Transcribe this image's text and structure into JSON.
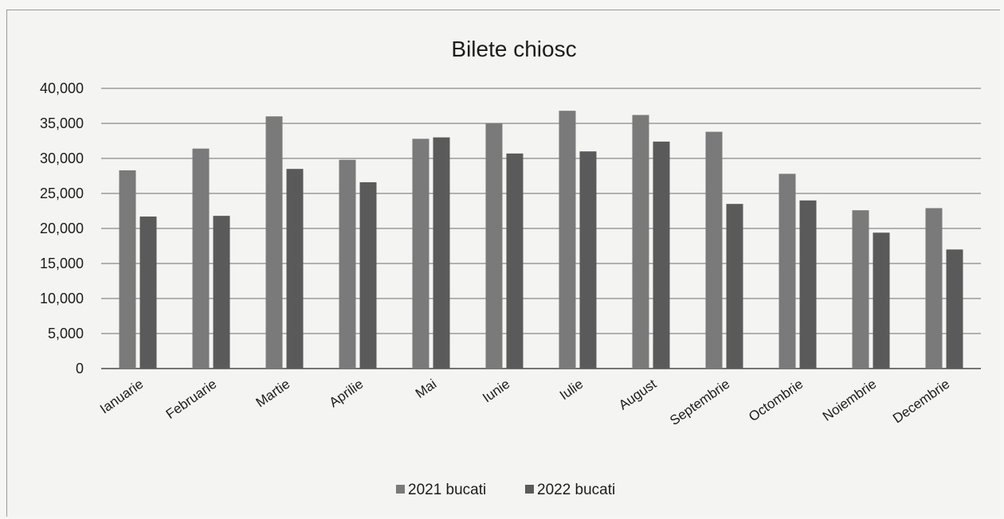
{
  "chart_data": {
    "type": "bar",
    "title": "Bilete chiosc",
    "categories": [
      "Ianuarie",
      "Februarie",
      "Martie",
      "Aprilie",
      "Mai",
      "Iunie",
      "Iulie",
      "August",
      "Septembrie",
      "Octombrie",
      "Noiembrie",
      "Decembrie"
    ],
    "series": [
      {
        "name": "2021 bucati",
        "color": "#7a7a7a",
        "values": [
          28300,
          31400,
          36000,
          29800,
          32800,
          35000,
          36800,
          36200,
          33800,
          27800,
          22600,
          22900
        ]
      },
      {
        "name": "2022 bucati",
        "color": "#5a5a5a",
        "values": [
          21700,
          21800,
          28500,
          26600,
          33000,
          30700,
          31000,
          32400,
          23500,
          24000,
          19400,
          17000
        ]
      }
    ],
    "yticks": [
      "0",
      "5,000",
      "10,000",
      "15,000",
      "20,000",
      "25,000",
      "30,000",
      "35,000",
      "40,000"
    ],
    "ylim": [
      0,
      40000
    ],
    "grid": true,
    "legend_position": "bottom"
  }
}
